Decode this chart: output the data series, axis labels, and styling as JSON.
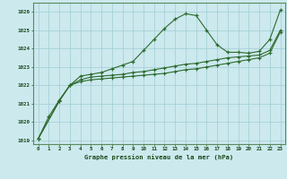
{
  "bg_color": "#cce9ee",
  "grid_color": "#9fcdd4",
  "line_color": "#2d6a2d",
  "xlabel": "Graphe pression niveau de la mer (hPa)",
  "xlabel_color": "#1a4a1a",
  "xlim": [
    -0.5,
    23.5
  ],
  "ylim": [
    1018.8,
    1026.5
  ],
  "xticks": [
    0,
    1,
    2,
    3,
    4,
    5,
    6,
    7,
    8,
    9,
    10,
    11,
    12,
    13,
    14,
    15,
    16,
    17,
    18,
    19,
    20,
    21,
    22,
    23
  ],
  "yticks": [
    1019,
    1020,
    1021,
    1022,
    1023,
    1024,
    1025,
    1026
  ],
  "series1_x": [
    0,
    1,
    2,
    3,
    4,
    5,
    6,
    7,
    8,
    9,
    10,
    11,
    12,
    13,
    14,
    15,
    16,
    17,
    18,
    19,
    20,
    21,
    22,
    23
  ],
  "series1_y": [
    1019.1,
    1020.3,
    1021.2,
    1022.0,
    1022.5,
    1022.6,
    1022.7,
    1022.9,
    1023.1,
    1023.3,
    1023.9,
    1024.5,
    1025.1,
    1025.6,
    1025.9,
    1025.8,
    1025.0,
    1024.2,
    1023.8,
    1023.8,
    1023.75,
    1023.85,
    1024.5,
    1026.1
  ],
  "series2_x": [
    0,
    2,
    3,
    4,
    5,
    6,
    7,
    8,
    9,
    10,
    11,
    12,
    13,
    14,
    15,
    16,
    17,
    18,
    19,
    20,
    21,
    22,
    23
  ],
  "series2_y": [
    1019.1,
    1021.15,
    1022.0,
    1022.3,
    1022.45,
    1022.5,
    1022.55,
    1022.6,
    1022.7,
    1022.75,
    1022.85,
    1022.95,
    1023.05,
    1023.15,
    1023.2,
    1023.3,
    1023.4,
    1023.5,
    1023.55,
    1023.6,
    1023.65,
    1023.9,
    1025.0
  ],
  "series3_x": [
    0,
    2,
    3,
    4,
    5,
    6,
    7,
    8,
    9,
    10,
    11,
    12,
    13,
    14,
    15,
    16,
    17,
    18,
    19,
    20,
    21,
    22,
    23
  ],
  "series3_y": [
    1019.1,
    1021.15,
    1022.0,
    1022.2,
    1022.3,
    1022.35,
    1022.4,
    1022.45,
    1022.5,
    1022.55,
    1022.6,
    1022.65,
    1022.75,
    1022.85,
    1022.9,
    1023.0,
    1023.1,
    1023.2,
    1023.3,
    1023.4,
    1023.5,
    1023.75,
    1024.9
  ]
}
